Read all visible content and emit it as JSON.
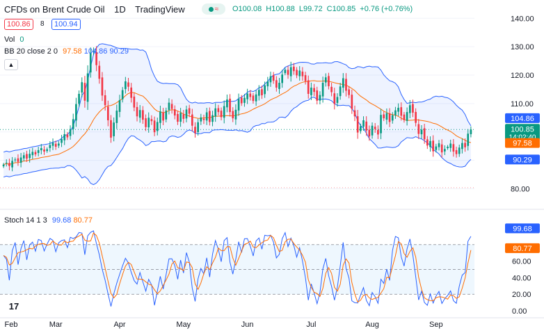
{
  "header": {
    "symbol_title": "CFDs on Brent Crude Oil",
    "interval": "1D",
    "source": "TradingView",
    "wave_icon": "wave-icon",
    "ohlc": {
      "open": "O100.08",
      "high": "H100.88",
      "low": "L99.72",
      "close": "C100.85",
      "change": "+0.76 (+0.76%)"
    },
    "sell_price": "100.86",
    "spread": "8",
    "buy_price": "100.94"
  },
  "indicators": {
    "vol_label": "Vol",
    "vol_value": "0",
    "bb_label": "BB 20 close 2 0",
    "bb_basis": "97.58",
    "bb_upper": "104.86",
    "bb_lower": "90.29",
    "stoch_label": "Stoch 14 1 3",
    "stoch_k": "99.68",
    "stoch_d": "80.77"
  },
  "price_axis": {
    "ticks": [
      "140.00",
      "130.00",
      "120.00",
      "110.00",
      "100.00",
      "90.00",
      "80.00"
    ],
    "last_price_label": "100.85",
    "countdown": "14:02:40",
    "bb_upper_label": "104.86",
    "bb_basis_label": "97.58",
    "bb_lower_label": "90.29"
  },
  "stoch_axis": {
    "ticks": [
      "60.00",
      "40.00",
      "20.00",
      "0.00"
    ],
    "k_label": "99.68",
    "d_label": "80.77"
  },
  "time_axis": [
    "Feb",
    "Mar",
    "Apr",
    "May",
    "Jun",
    "Jul",
    "Aug",
    "Sep"
  ],
  "colors": {
    "up": "#089981",
    "down": "#f23645",
    "bb_band": "#2962ff",
    "bb_basis": "#ff6d00",
    "stoch_k": "#2962ff",
    "stoch_d": "#ff6d00"
  },
  "chart_data": {
    "type": "candlestick",
    "title": "CFDs on Brent Crude Oil",
    "interval": "1D",
    "ylim": [
      74,
      143
    ],
    "stoch_ylim": [
      -5,
      105
    ],
    "stoch_levels": [
      80,
      50,
      20
    ],
    "closes": [
      88.5,
      89.2,
      88.0,
      89.8,
      90.3,
      89.5,
      91.0,
      91.8,
      90.6,
      92.3,
      93.0,
      92.1,
      93.6,
      94.3,
      93.1,
      93.9,
      95.4,
      96.2,
      94.8,
      95.9,
      97.5,
      99.2,
      98.1,
      101.0,
      104.5,
      109.8,
      113.4,
      117.5,
      111.0,
      120.6,
      127.9,
      128.5,
      123.5,
      118.7,
      112.8,
      109.4,
      104.1,
      98.0,
      103.3,
      107.5,
      111.2,
      114.7,
      117.8,
      115.9,
      112.0,
      108.6,
      105.5,
      107.7,
      104.3,
      101.7,
      105.0,
      103.8,
      99.9,
      103.5,
      107.2,
      104.0,
      107.5,
      110.3,
      108.1,
      105.8,
      103.6,
      106.7,
      104.6,
      107.9,
      106.4,
      102.2,
      99.6,
      103.4,
      105.1,
      104.2,
      106.9,
      103.5,
      105.9,
      108.3,
      107.0,
      105.2,
      109.1,
      111.4,
      107.0,
      104.8,
      107.8,
      111.6,
      110.1,
      112.0,
      113.5,
      112.3,
      110.9,
      113.2,
      114.8,
      112.9,
      116.4,
      117.8,
      119.6,
      118.0,
      115.6,
      117.3,
      120.2,
      121.9,
      120.1,
      122.8,
      121.4,
      119.9,
      121.6,
      119.6,
      117.9,
      113.4,
      115.6,
      114.1,
      111.0,
      113.0,
      117.3,
      119.2,
      116.1,
      114.0,
      109.9,
      112.3,
      116.0,
      118.9,
      114.5,
      113.0,
      108.1,
      105.5,
      99.8,
      102.0,
      104.1,
      100.5,
      98.4,
      102.2,
      101.0,
      99.1,
      106.0,
      104.8,
      106.6,
      103.5,
      105.9,
      107.6,
      108.5,
      105.7,
      104.2,
      107.0,
      109.4,
      106.8,
      103.2,
      99.3,
      100.8,
      97.4,
      95.2,
      96.8,
      93.2,
      94.9,
      96.0,
      92.8,
      94.0,
      94.8,
      95.9,
      93.1,
      92.2,
      94.5,
      96.1,
      94.6,
      99.4,
      100.85
    ],
    "legend": [
      "BB 20 close 2 0",
      "Stoch 14 1 3"
    ]
  }
}
